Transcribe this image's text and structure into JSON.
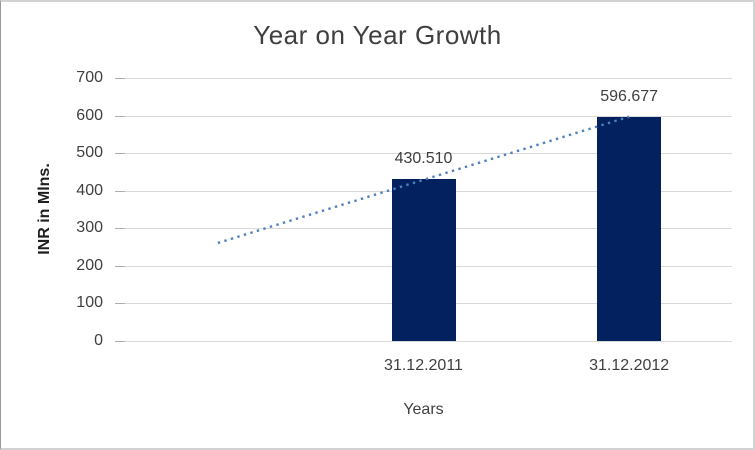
{
  "chart_data": {
    "type": "bar",
    "title": "Year on Year Growth",
    "xlabel": "Years",
    "ylabel": "INR in Mlns.",
    "categories": [
      "31.12.2011",
      "31.12.2012"
    ],
    "series": [
      {
        "name": "INR in Mlns.",
        "values": [
          430.51,
          596.677
        ],
        "labels": [
          "430.510",
          "596.677"
        ],
        "color": "#03215f"
      }
    ],
    "ylim": [
      0,
      700
    ],
    "ytick_step": 100,
    "yticks": [
      "0",
      "100",
      "200",
      "300",
      "400",
      "500",
      "600",
      "700"
    ],
    "grid": "horizontal",
    "legend": "none",
    "trendline": {
      "style": "dotted",
      "color": "#4f81bd",
      "start_value": 261,
      "end_value": 597,
      "note": "linear trend, extends one empty category slot left of first bar"
    }
  },
  "colors": {
    "bar": "#03215f",
    "trend": "#4f81bd",
    "grid": "#d9d9d9",
    "axis_text": "#3f3f3f",
    "frame": "#d2d2d2"
  }
}
